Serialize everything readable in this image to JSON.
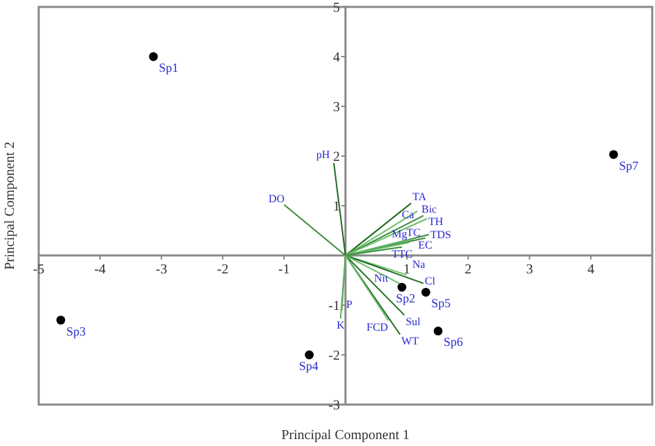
{
  "chart_data": {
    "type": "scatter",
    "xlabel": "Principal Component 1",
    "ylabel": "Principal Component 2",
    "xlim": [
      -5,
      5
    ],
    "ylim": [
      -3,
      5
    ],
    "xticks": [
      -5,
      -4,
      -3,
      -2,
      -1,
      1,
      2,
      3,
      4
    ],
    "yticks": [
      -3,
      -2,
      -1,
      1,
      2,
      3,
      4,
      5
    ],
    "series": [
      {
        "color": "#000000",
        "marker": "circle",
        "x": [
          -3.13,
          0.92,
          -4.64,
          -0.59,
          1.31,
          1.51,
          4.37
        ],
        "values": [
          4.0,
          -0.64,
          -1.3,
          -2.0,
          -0.74,
          -1.52,
          2.03
        ]
      },
      {
        "type": "line",
        "name": "pH",
        "color": "#1f6b1f",
        "marker": "none",
        "x": [
          0,
          -0.19
        ],
        "values": [
          0,
          1.86
        ]
      },
      {
        "type": "line",
        "name": "DO",
        "color": "#3a8a3a",
        "marker": "none",
        "x": [
          0,
          -1.0
        ],
        "values": [
          0,
          1.02
        ]
      },
      {
        "type": "line",
        "name": "TA",
        "color": "#1f6b1f",
        "marker": "none",
        "x": [
          0,
          1.07
        ],
        "values": [
          0,
          1.05
        ]
      },
      {
        "type": "line",
        "name": "Ca",
        "color": "#6cbf6c",
        "marker": "none",
        "x": [
          0,
          1.17
        ],
        "values": [
          0,
          0.89
        ]
      },
      {
        "type": "line",
        "name": "Bic",
        "color": "#3a8a3a",
        "marker": "none",
        "x": [
          0,
          1.27
        ],
        "values": [
          0,
          0.8
        ]
      },
      {
        "type": "line",
        "name": "TH",
        "color": "#6cbf6c",
        "marker": "none",
        "x": [
          0,
          1.33
        ],
        "values": [
          0,
          0.74
        ]
      },
      {
        "type": "line",
        "name": "TDS",
        "color": "#3a8a3a",
        "marker": "none",
        "x": [
          0,
          1.36
        ],
        "values": [
          0,
          0.42
        ]
      },
      {
        "type": "line",
        "name": "TC",
        "color": "#6cbf6c",
        "marker": "none",
        "x": [
          0,
          1.11
        ],
        "values": [
          0,
          0.33
        ]
      },
      {
        "type": "line",
        "name": "EC",
        "color": "#3a8a3a",
        "marker": "none",
        "x": [
          0,
          1.3
        ],
        "values": [
          0,
          0.35
        ]
      },
      {
        "type": "line",
        "name": "Mg",
        "color": "#6cbf6c",
        "marker": "none",
        "x": [
          0,
          1.04
        ],
        "values": [
          0,
          0.26
        ]
      },
      {
        "type": "line",
        "name": "TTC",
        "color": "#3a8a3a",
        "marker": "none",
        "x": [
          0,
          0.92
        ],
        "values": [
          0,
          0.17
        ]
      },
      {
        "type": "line",
        "name": "Na",
        "color": "#6cbf6c",
        "marker": "none",
        "x": [
          0,
          1.0
        ],
        "values": [
          0,
          -0.39
        ]
      },
      {
        "type": "line",
        "name": "Cl",
        "color": "#1f6b1f",
        "marker": "none",
        "x": [
          0,
          1.27
        ],
        "values": [
          0,
          -0.56
        ]
      },
      {
        "type": "line",
        "name": "Nit",
        "color": "#6cbf6c",
        "marker": "none",
        "x": [
          0,
          0.89
        ],
        "values": [
          0,
          -0.57
        ]
      },
      {
        "type": "line",
        "name": "Sul",
        "color": "#1f6b1f",
        "marker": "none",
        "x": [
          0,
          0.96
        ],
        "values": [
          0,
          -1.2
        ]
      },
      {
        "type": "line",
        "name": "WT",
        "color": "#1f6b1f",
        "marker": "none",
        "x": [
          0,
          0.89
        ],
        "values": [
          0,
          -1.59
        ]
      },
      {
        "type": "line",
        "name": "FCD",
        "color": "#6cbf6c",
        "marker": "none",
        "x": [
          0,
          0.7
        ],
        "values": [
          0,
          -1.31
        ]
      },
      {
        "type": "line",
        "name": "P",
        "color": "#5fb05f",
        "marker": "none",
        "x": [
          0,
          -0.06
        ],
        "values": [
          0,
          -1.11
        ]
      },
      {
        "type": "line",
        "name": "K",
        "color": "#5fb05f",
        "marker": "none",
        "x": [
          0,
          -0.08
        ],
        "values": [
          0,
          -1.27
        ]
      }
    ],
    "annotations": [
      {
        "text": "Sp1",
        "x": -3.13,
        "y": 4.0
      },
      {
        "text": "Sp2",
        "x": 0.92,
        "y": -0.64
      },
      {
        "text": "Sp3",
        "x": -4.64,
        "y": -1.3
      },
      {
        "text": "Sp4",
        "x": -0.59,
        "y": -2.0
      },
      {
        "text": "Sp5",
        "x": 1.31,
        "y": -0.74
      },
      {
        "text": "Sp6",
        "x": 1.51,
        "y": -1.52
      },
      {
        "text": "Sp7",
        "x": 4.37,
        "y": 2.03
      }
    ]
  }
}
